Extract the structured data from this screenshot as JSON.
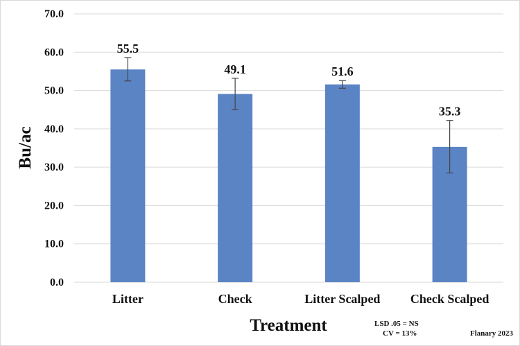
{
  "chart_data": {
    "type": "bar",
    "categories": [
      "Litter",
      "Check",
      "Litter Scalped",
      "Check Scalped"
    ],
    "values": [
      55.5,
      49.1,
      51.6,
      35.3
    ],
    "data_labels": [
      "55.5",
      "49.1",
      "51.6",
      "35.3"
    ],
    "error_bars": [
      {
        "low": 52.5,
        "high": 58.6
      },
      {
        "low": 45.0,
        "high": 53.2
      },
      {
        "low": 50.6,
        "high": 52.6
      },
      {
        "low": 28.5,
        "high": 42.2
      }
    ],
    "ylabel": "Bu/ac",
    "xlabel": "Treatment",
    "ylim": [
      0,
      70
    ],
    "yticks": [
      0,
      10,
      20,
      30,
      40,
      50,
      60,
      70
    ],
    "ytick_labels": [
      "0.0",
      "10.0",
      "20.0",
      "30.0",
      "40.0",
      "50.0",
      "60.0",
      "70.0"
    ],
    "grid": true,
    "legend": "none",
    "bar_color": "#5b84c4",
    "error_color": "#444444",
    "grid_color": "#d9d9d9"
  },
  "notes": {
    "lsd": "LSD .05 = NS",
    "cv": "CV = 13%",
    "credit": "Flanary 2023"
  }
}
